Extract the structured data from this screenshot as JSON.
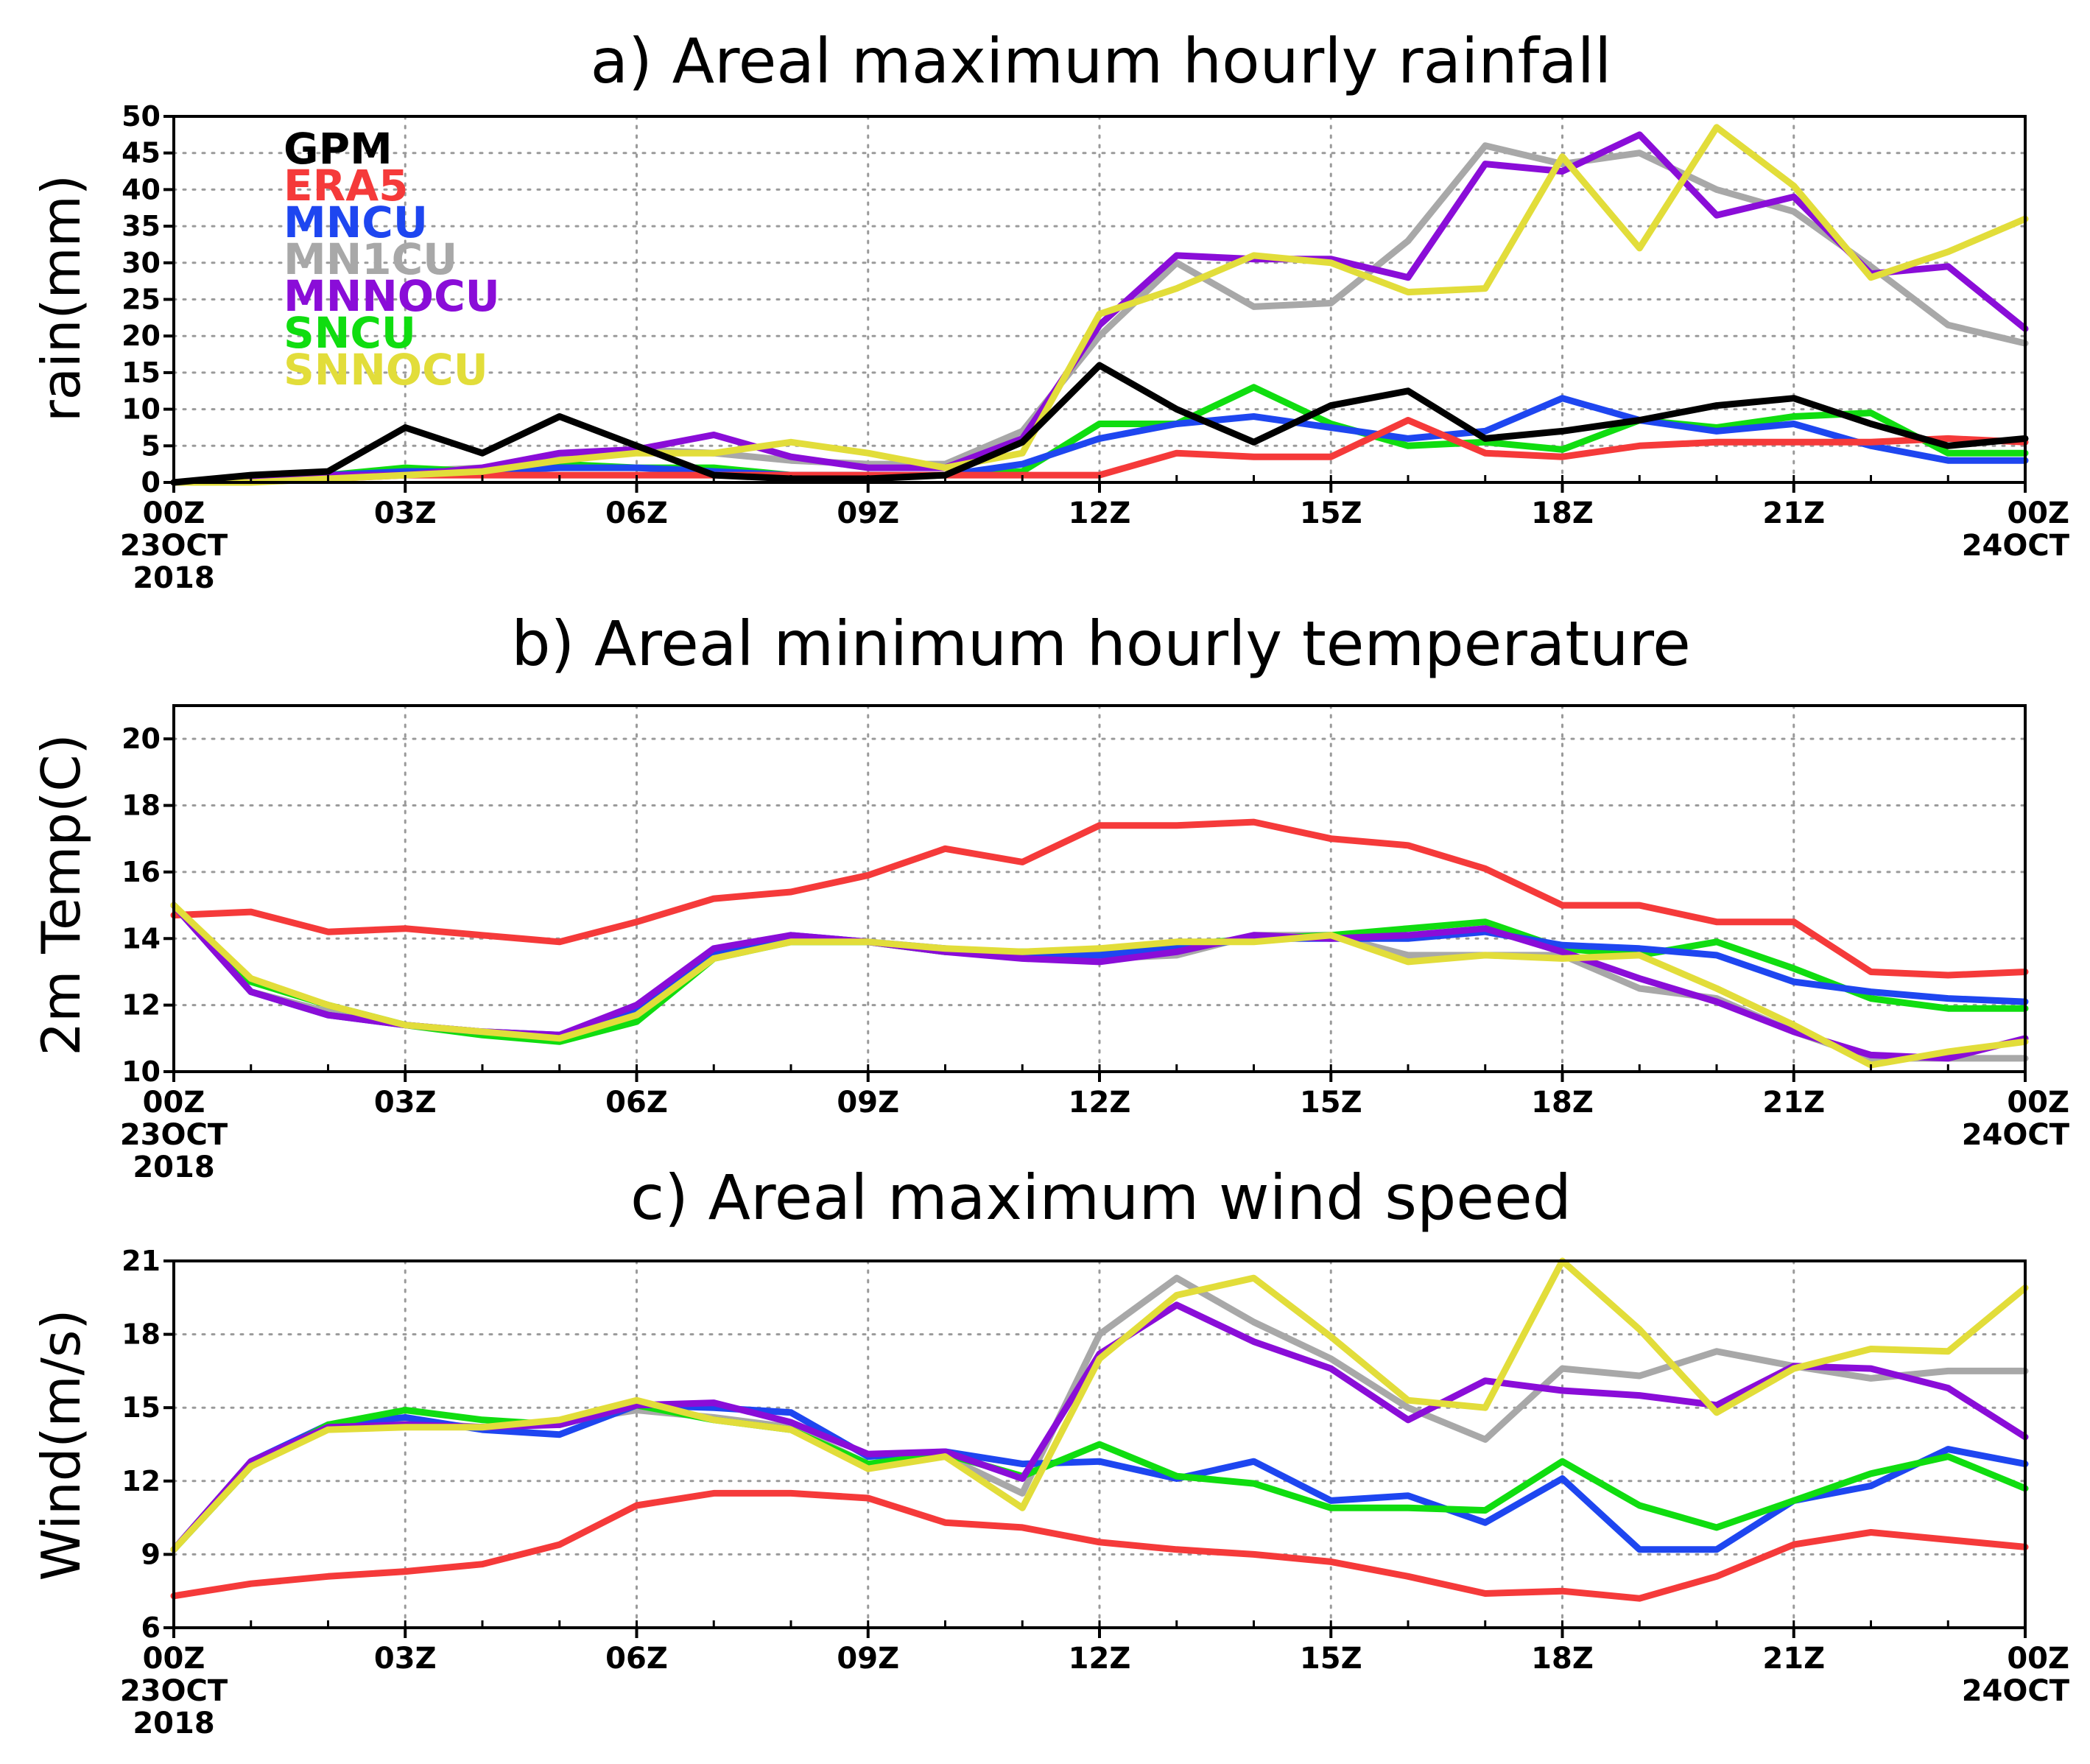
{
  "chart_data": [
    {
      "type": "line",
      "title": "a) Areal maximum hourly rainfall",
      "ylabel": "rain(mm)",
      "ylim": [
        0,
        50
      ],
      "yticks": [
        "0",
        "5",
        "10",
        "15",
        "20",
        "25",
        "30",
        "35",
        "40",
        "45",
        "50"
      ],
      "x": [
        0,
        1,
        2,
        3,
        4,
        5,
        6,
        7,
        8,
        9,
        10,
        11,
        12,
        13,
        14,
        15,
        16,
        17,
        18,
        19,
        20,
        21,
        22,
        23,
        24
      ],
      "xticks": [
        {
          "hour": 0,
          "lines": [
            "00Z",
            "23OCT",
            "2018"
          ]
        },
        {
          "hour": 3,
          "lines": [
            "03Z"
          ]
        },
        {
          "hour": 6,
          "lines": [
            "06Z"
          ]
        },
        {
          "hour": 9,
          "lines": [
            "09Z"
          ]
        },
        {
          "hour": 12,
          "lines": [
            "12Z"
          ]
        },
        {
          "hour": 15,
          "lines": [
            "15Z"
          ]
        },
        {
          "hour": 18,
          "lines": [
            "18Z"
          ]
        },
        {
          "hour": 21,
          "lines": [
            "21Z"
          ]
        },
        {
          "hour": 24,
          "lines": [
            "00Z",
            "24OCT"
          ]
        }
      ],
      "legend": true,
      "series": [
        {
          "name": "MN1CU",
          "color": "#a8a8a8",
          "values": [
            0,
            0.3,
            0.7,
            1.5,
            2,
            3.5,
            4.5,
            4,
            3,
            2.5,
            2.5,
            7,
            20,
            30,
            24,
            24.5,
            33,
            46,
            43.5,
            45,
            40,
            37,
            29.5,
            21.5,
            19
          ]
        },
        {
          "name": "SNCU",
          "color": "#10dd10",
          "values": [
            0,
            0.5,
            1,
            2,
            1.5,
            2.5,
            2,
            2,
            1,
            1,
            1,
            1.5,
            8,
            8,
            13,
            8,
            5,
            5.5,
            4.5,
            8.5,
            7.5,
            9,
            9.5,
            4,
            4
          ]
        },
        {
          "name": "MNCU",
          "color": "#1e46f0",
          "values": [
            0,
            0.5,
            1,
            1.5,
            1.5,
            2,
            2,
            1.5,
            1,
            1,
            1,
            2.5,
            6,
            8,
            9,
            7.5,
            6,
            7,
            11.5,
            8.5,
            7,
            8,
            5,
            3,
            3
          ]
        },
        {
          "name": "ERA5",
          "color": "#f53a3a",
          "values": [
            0,
            0.5,
            0.5,
            1,
            1,
            1,
            1,
            1,
            1,
            1,
            1,
            1,
            1,
            4,
            3.5,
            3.5,
            8.5,
            4,
            3.5,
            5,
            5.5,
            5.5,
            5.5,
            6,
            5.5
          ]
        },
        {
          "name": "MNNOCU",
          "color": "#8a0dd8",
          "values": [
            0,
            0.5,
            1,
            1,
            2,
            4,
            4.5,
            6.5,
            3.5,
            2,
            2,
            6,
            21.5,
            31,
            30.5,
            30.5,
            28,
            43.5,
            42.5,
            47.5,
            36.5,
            39,
            28.5,
            29.5,
            21
          ]
        },
        {
          "name": "SNNOCU",
          "color": "#e2dd3a",
          "values": [
            0,
            0,
            0.5,
            1,
            1.5,
            3,
            4,
            4,
            5.5,
            4,
            2,
            4,
            23,
            26.5,
            31,
            30,
            26,
            26.5,
            44.5,
            32,
            48.5,
            40.5,
            28,
            31.5,
            36
          ]
        },
        {
          "name": "GPM",
          "color": "#000000",
          "values": [
            0,
            1,
            1.5,
            7.5,
            4,
            9,
            5,
            1,
            0.5,
            0.5,
            1,
            5.5,
            16,
            10,
            5.5,
            10.5,
            12.5,
            6,
            7,
            8.5,
            10.5,
            11.5,
            8,
            5,
            6
          ]
        }
      ]
    },
    {
      "type": "line",
      "title": "b) Areal minimum hourly temperature",
      "ylabel": "2m Temp(C)",
      "ylim": [
        10,
        21
      ],
      "yticks": [
        "10",
        "12",
        "14",
        "16",
        "18",
        "20"
      ],
      "x": [
        0,
        1,
        2,
        3,
        4,
        5,
        6,
        7,
        8,
        9,
        10,
        11,
        12,
        13,
        14,
        15,
        16,
        17,
        18,
        19,
        20,
        21,
        22,
        23,
        24
      ],
      "xticks": [
        {
          "hour": 0,
          "lines": [
            "00Z",
            "23OCT",
            "2018"
          ]
        },
        {
          "hour": 3,
          "lines": [
            "03Z"
          ]
        },
        {
          "hour": 6,
          "lines": [
            "06Z"
          ]
        },
        {
          "hour": 9,
          "lines": [
            "09Z"
          ]
        },
        {
          "hour": 12,
          "lines": [
            "12Z"
          ]
        },
        {
          "hour": 15,
          "lines": [
            "15Z"
          ]
        },
        {
          "hour": 18,
          "lines": [
            "18Z"
          ]
        },
        {
          "hour": 21,
          "lines": [
            "21Z"
          ]
        },
        {
          "hour": 24,
          "lines": [
            "00Z",
            "24OCT"
          ]
        }
      ],
      "legend": false,
      "series": [
        {
          "name": "MN1CU",
          "color": "#a8a8a8",
          "values": [
            15,
            12.4,
            11.8,
            11.4,
            11.2,
            11,
            12,
            13.6,
            13.9,
            13.9,
            13.6,
            13.5,
            13.4,
            13.5,
            14.1,
            14.1,
            13.5,
            13.5,
            13.5,
            12.5,
            12.2,
            11.2,
            10.4,
            10.4,
            10.4
          ]
        },
        {
          "name": "SNCU",
          "color": "#10dd10",
          "values": [
            15,
            12.7,
            12,
            11.4,
            11.1,
            10.9,
            11.5,
            13.4,
            13.9,
            13.9,
            13.6,
            13.6,
            13.6,
            13.8,
            14,
            14.1,
            14.3,
            14.5,
            13.7,
            13.5,
            13.9,
            13.1,
            12.2,
            11.9,
            11.9
          ]
        },
        {
          "name": "MNCU",
          "color": "#1e46f0",
          "values": [
            15,
            12.4,
            11.7,
            11.4,
            11.2,
            11.1,
            11.8,
            13.6,
            14.1,
            13.9,
            13.7,
            13.5,
            13.5,
            13.7,
            14,
            14,
            14,
            14.2,
            13.8,
            13.7,
            13.5,
            12.7,
            12.4,
            12.2,
            12.1
          ]
        },
        {
          "name": "ERA5",
          "color": "#f53a3a",
          "values": [
            14.7,
            14.8,
            14.2,
            14.3,
            14.1,
            13.9,
            14.5,
            15.2,
            15.4,
            15.9,
            16.7,
            16.3,
            17.4,
            17.4,
            17.5,
            17,
            16.8,
            16.1,
            15,
            15,
            14.5,
            14.5,
            13,
            12.9,
            13
          ]
        },
        {
          "name": "MNNOCU",
          "color": "#8a0dd8",
          "values": [
            15,
            12.4,
            11.7,
            11.4,
            11.2,
            11.1,
            12,
            13.7,
            14.1,
            13.9,
            13.6,
            13.4,
            13.3,
            13.6,
            14.1,
            14,
            14.1,
            14.3,
            13.6,
            12.8,
            12.1,
            11.2,
            10.5,
            10.4,
            11
          ]
        },
        {
          "name": "SNNOCU",
          "color": "#e2dd3a",
          "values": [
            15,
            12.8,
            12,
            11.4,
            11.2,
            11,
            11.7,
            13.4,
            13.9,
            13.9,
            13.7,
            13.6,
            13.7,
            13.9,
            13.9,
            14.1,
            13.3,
            13.5,
            13.4,
            13.5,
            12.5,
            11.4,
            10.2,
            10.6,
            10.9
          ]
        }
      ]
    },
    {
      "type": "line",
      "title": "c) Areal maximum wind speed",
      "ylabel": "Wind(m/s)",
      "ylim": [
        6,
        21
      ],
      "yticks": [
        "6",
        "9",
        "12",
        "15",
        "18",
        "21"
      ],
      "x": [
        0,
        1,
        2,
        3,
        4,
        5,
        6,
        7,
        8,
        9,
        10,
        11,
        12,
        13,
        14,
        15,
        16,
        17,
        18,
        19,
        20,
        21,
        22,
        23,
        24
      ],
      "xticks": [
        {
          "hour": 0,
          "lines": [
            "00Z",
            "23OCT",
            "2018"
          ]
        },
        {
          "hour": 3,
          "lines": [
            "03Z"
          ]
        },
        {
          "hour": 6,
          "lines": [
            "06Z"
          ]
        },
        {
          "hour": 9,
          "lines": [
            "09Z"
          ]
        },
        {
          "hour": 12,
          "lines": [
            "12Z"
          ]
        },
        {
          "hour": 15,
          "lines": [
            "15Z"
          ]
        },
        {
          "hour": 18,
          "lines": [
            "18Z"
          ]
        },
        {
          "hour": 21,
          "lines": [
            "21Z"
          ]
        },
        {
          "hour": 24,
          "lines": [
            "00Z",
            "24OCT"
          ]
        }
      ],
      "legend": false,
      "series": [
        {
          "name": "ERA5",
          "color": "#f53a3a",
          "values": [
            7.3,
            7.8,
            8.1,
            8.3,
            8.6,
            9.4,
            11,
            11.5,
            11.5,
            11.3,
            10.3,
            10.1,
            9.5,
            9.2,
            9,
            8.7,
            8.1,
            7.4,
            7.5,
            7.2,
            8.1,
            9.4,
            9.9,
            9.6,
            9.3
          ]
        },
        {
          "name": "MN1CU",
          "color": "#a8a8a8",
          "values": [
            9.2,
            12.6,
            14.2,
            14.4,
            14.2,
            14.4,
            14.9,
            14.6,
            14.2,
            12.7,
            13,
            11.5,
            18,
            20.3,
            18.5,
            17,
            15,
            13.7,
            16.6,
            16.3,
            17.3,
            16.7,
            16.2,
            16.5,
            16.5
          ]
        },
        {
          "name": "MNCU",
          "color": "#1e46f0",
          "values": [
            9.2,
            12.8,
            14.3,
            14.6,
            14.1,
            13.9,
            15.1,
            15,
            14.8,
            13,
            13.2,
            12.7,
            12.8,
            12.1,
            12.8,
            11.2,
            11.4,
            10.3,
            12.1,
            9.2,
            9.2,
            11.2,
            11.8,
            13.3,
            12.7
          ]
        },
        {
          "name": "SNCU",
          "color": "#10dd10",
          "values": [
            9.2,
            12.6,
            14.3,
            14.9,
            14.5,
            14.3,
            15.1,
            14.5,
            14.1,
            12.7,
            13.1,
            12.2,
            13.5,
            12.2,
            11.9,
            10.9,
            10.9,
            10.8,
            12.8,
            11,
            10.1,
            11.2,
            12.3,
            13,
            11.7
          ]
        },
        {
          "name": "MNNOCU",
          "color": "#8a0dd8",
          "values": [
            9.2,
            12.8,
            14.2,
            14.3,
            14.2,
            14.3,
            15.1,
            15.2,
            14.4,
            13.1,
            13.2,
            12.1,
            17.2,
            19.2,
            17.7,
            16.6,
            14.5,
            16.1,
            15.7,
            15.5,
            15.1,
            16.7,
            16.6,
            15.8,
            13.8
          ]
        },
        {
          "name": "SNNOCU",
          "color": "#e2dd3a",
          "values": [
            9.2,
            12.6,
            14.1,
            14.2,
            14.2,
            14.5,
            15.3,
            14.5,
            14.1,
            12.5,
            13,
            10.9,
            17,
            19.6,
            20.3,
            17.9,
            15.3,
            15,
            21,
            18.2,
            14.8,
            16.6,
            17.4,
            17.3,
            19.9
          ]
        }
      ]
    }
  ]
}
